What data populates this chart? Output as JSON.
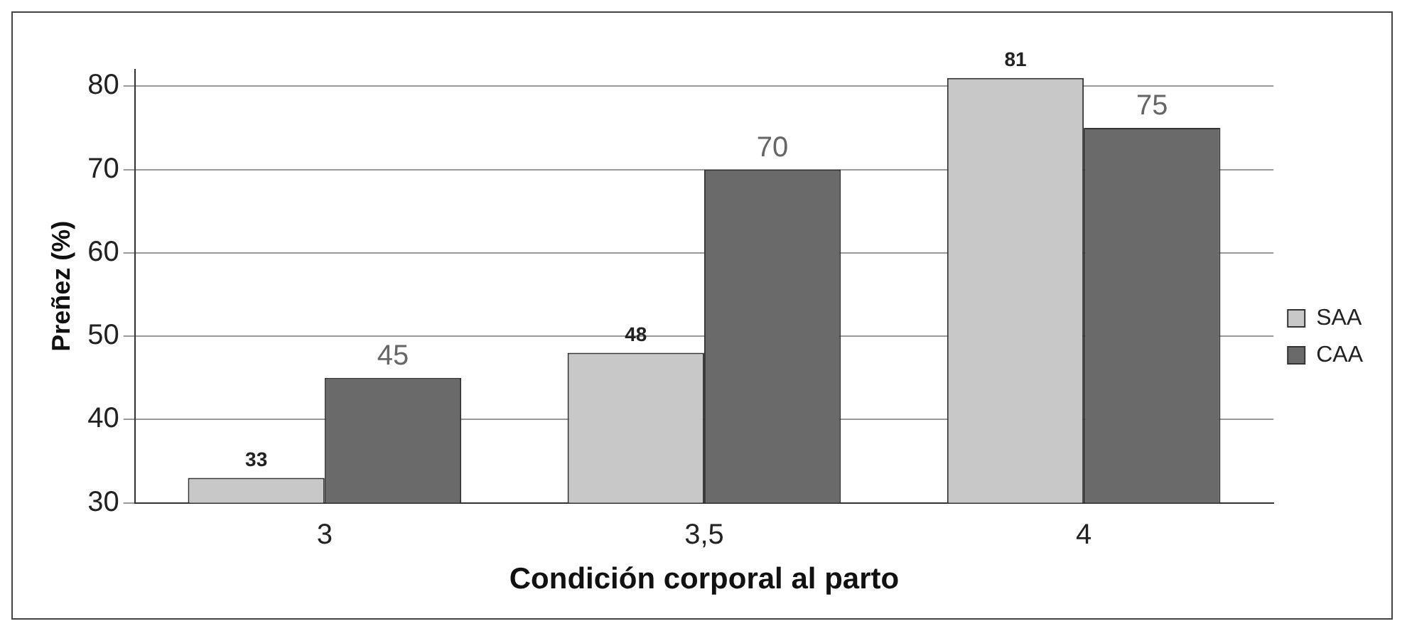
{
  "chart_data": {
    "type": "bar",
    "xlabel": "Condición corporal al parto",
    "ylabel": "Preñez (%)",
    "categories": [
      "3",
      "3,5",
      "4"
    ],
    "series": [
      {
        "name": "SAA",
        "color": "#c8c8c8",
        "values": [
          33,
          48,
          81
        ]
      },
      {
        "name": "CAA",
        "color": "#6a6a6a",
        "values": [
          45,
          70,
          75
        ]
      }
    ],
    "ylim": [
      30,
      82
    ],
    "yticks": [
      30,
      40,
      50,
      60,
      70,
      80
    ],
    "grid": "y",
    "legend": "right",
    "data_labels": true
  }
}
